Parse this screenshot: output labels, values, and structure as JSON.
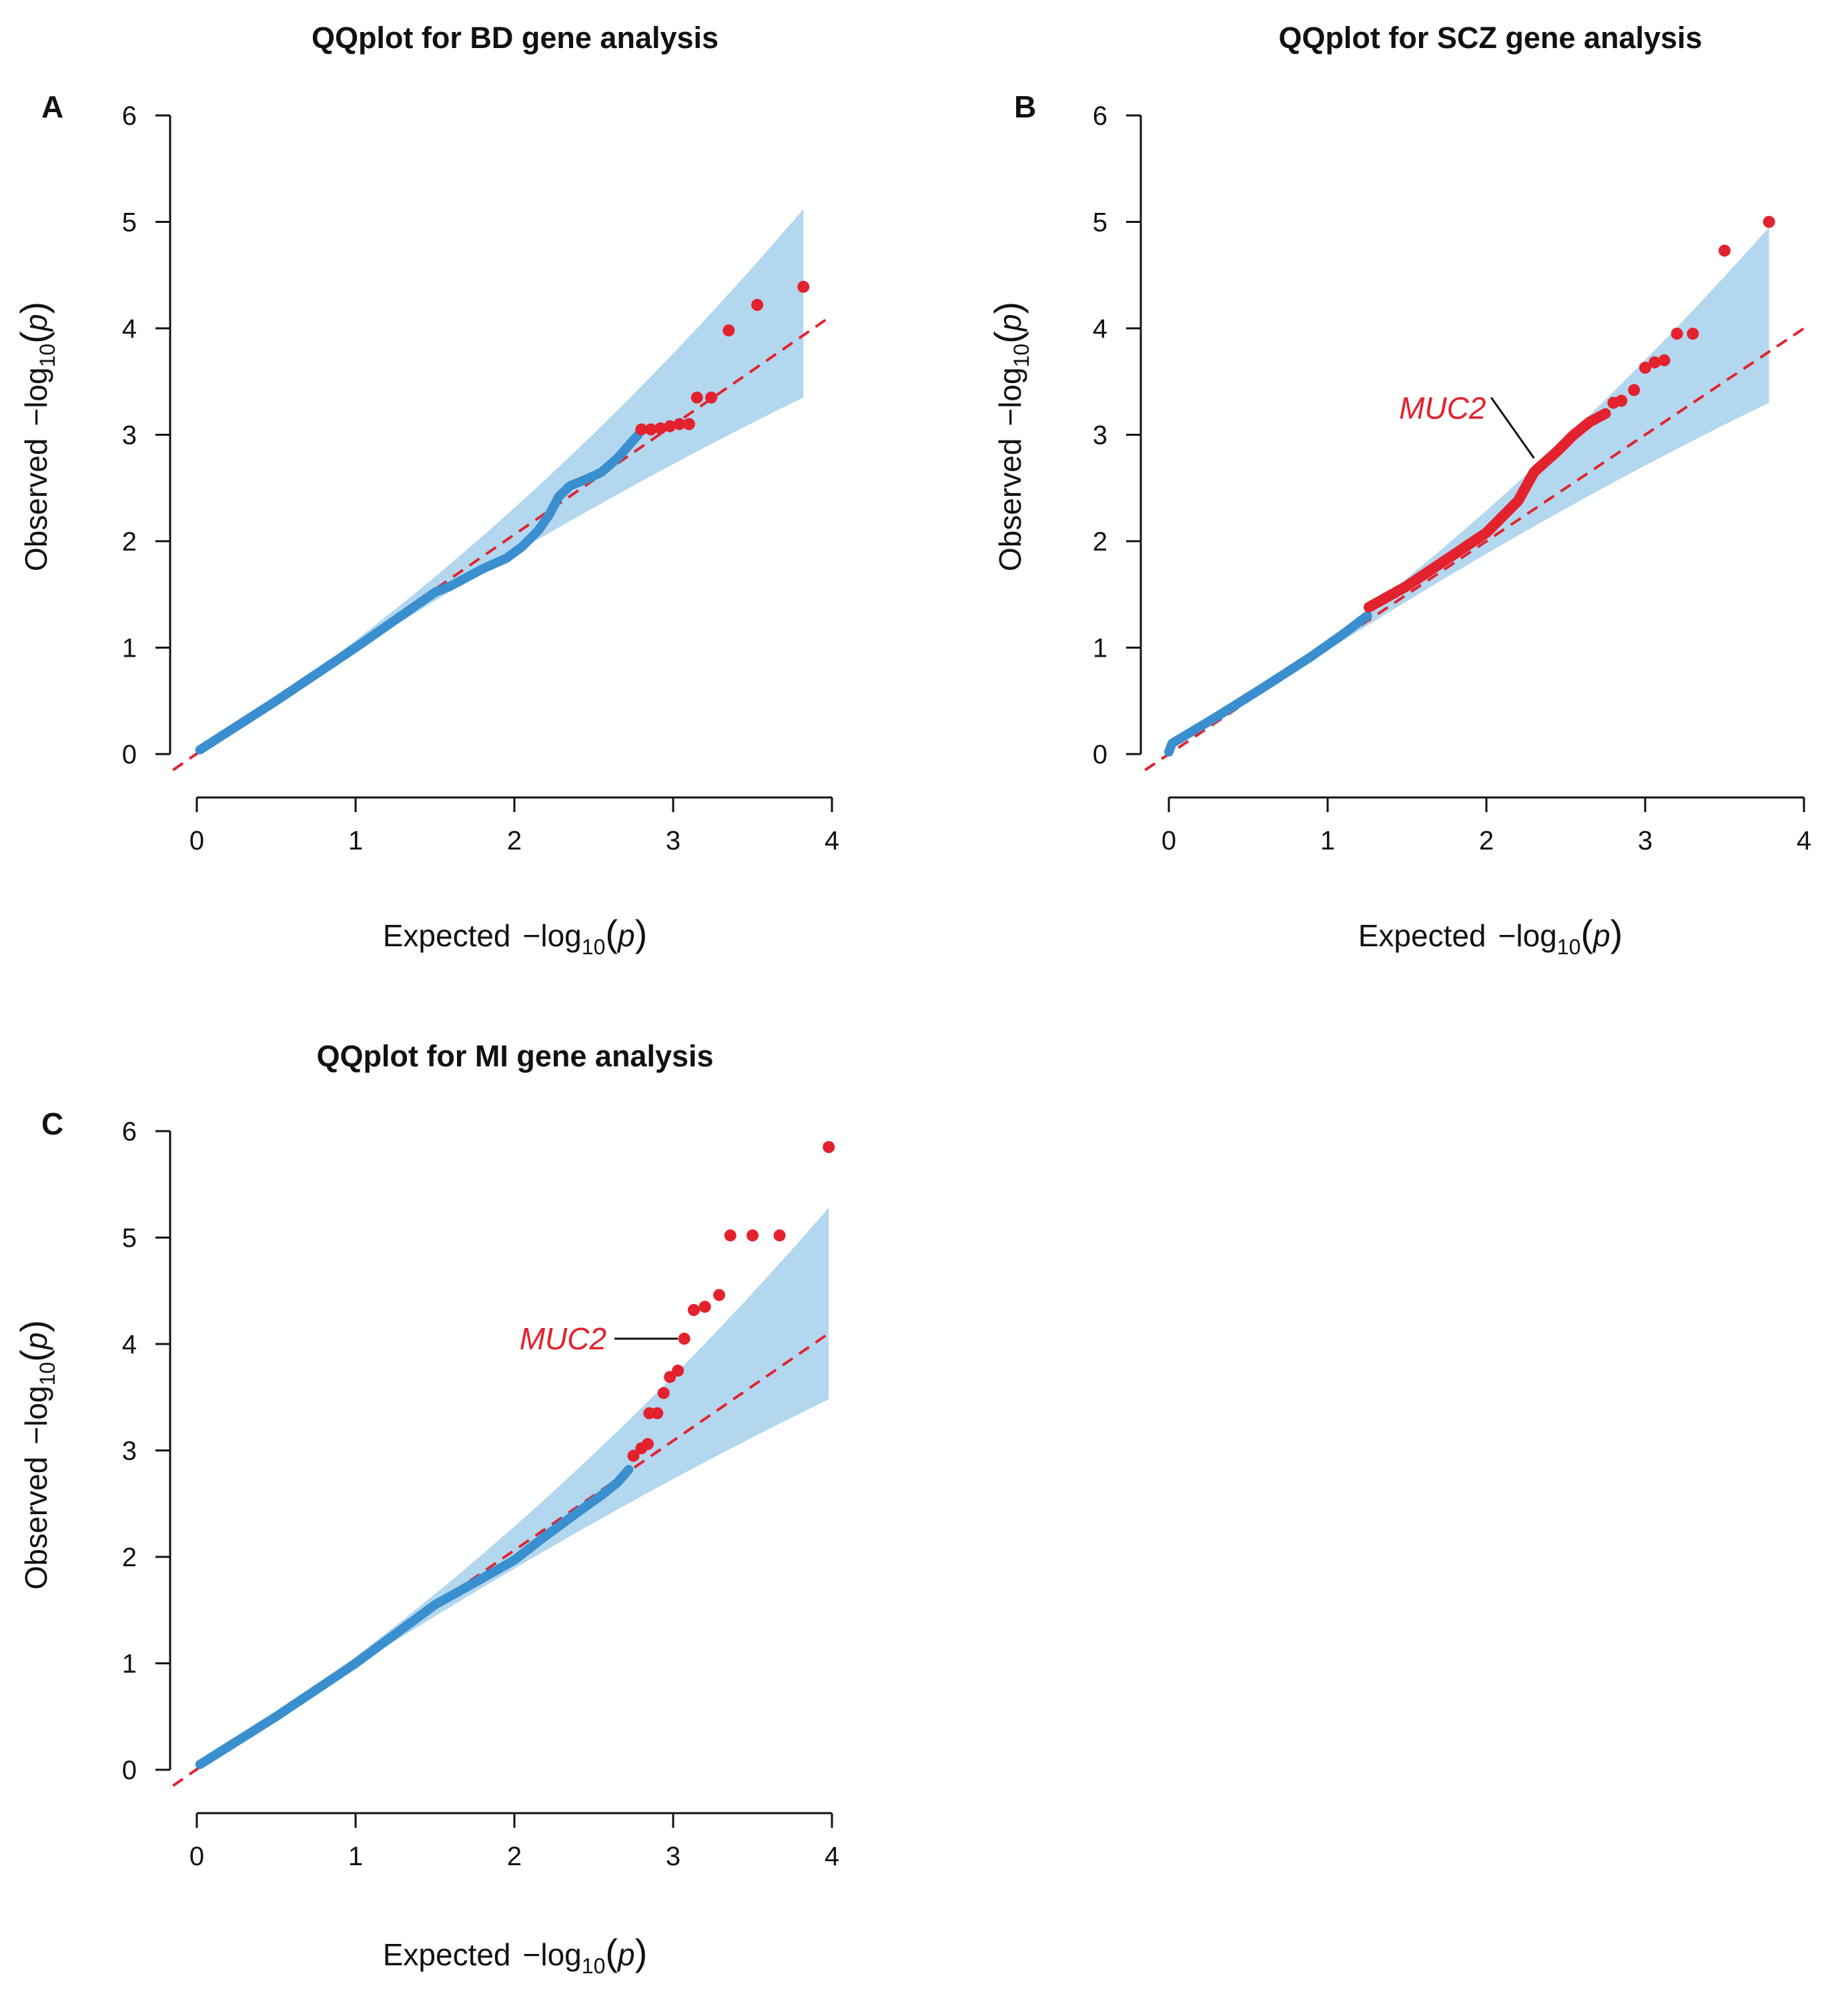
{
  "colors": {
    "band": "#b3d7ee",
    "null_line": "#e3222d",
    "point_normal": "#3a8fcf",
    "point_significant": "#e3222d",
    "axis": "#111111"
  },
  "chart_data": [
    {
      "panel": "A",
      "type": "scatter",
      "title": "QQplot for BD gene analysis",
      "xlabel": {
        "pre": "Expected",
        "minus_log": "−log",
        "base": "10",
        "open": "(",
        "var": "p",
        "close": ")"
      },
      "ylabel": {
        "pre": "Observed",
        "minus_log": "−log",
        "base": "10",
        "open": "(",
        "var": "p",
        "close": ")"
      },
      "xlim": [
        0,
        4
      ],
      "ylim": [
        0,
        6
      ],
      "xticks": [
        "0",
        "1",
        "2",
        "3",
        "4"
      ],
      "yticks": [
        "0",
        "1",
        "2",
        "3",
        "4",
        "5",
        "6"
      ],
      "null_line": {
        "x": [
          -0.15,
          4.0
        ],
        "y": [
          -0.15,
          4.12
        ]
      },
      "band_x_max": 3.82,
      "band_upper_end": 5.12,
      "band_lower_end": 3.35,
      "normal_curve": [
        [
          0.02,
          0.04
        ],
        [
          0.5,
          0.5
        ],
        [
          1.0,
          1.0
        ],
        [
          1.5,
          1.52
        ],
        [
          1.6,
          1.58
        ],
        [
          1.8,
          1.74
        ],
        [
          1.95,
          1.84
        ],
        [
          2.05,
          1.95
        ],
        [
          2.15,
          2.1
        ],
        [
          2.22,
          2.25
        ],
        [
          2.28,
          2.42
        ],
        [
          2.35,
          2.52
        ],
        [
          2.45,
          2.58
        ],
        [
          2.55,
          2.65
        ],
        [
          2.65,
          2.78
        ],
        [
          2.72,
          2.9
        ],
        [
          2.78,
          3.0
        ]
      ],
      "normal_n": 260,
      "significant_points": [
        [
          2.8,
          3.05
        ],
        [
          2.86,
          3.05
        ],
        [
          2.92,
          3.06
        ],
        [
          2.98,
          3.08
        ],
        [
          3.04,
          3.1
        ],
        [
          3.1,
          3.1
        ],
        [
          3.15,
          3.35
        ],
        [
          3.24,
          3.35
        ],
        [
          3.35,
          3.98
        ],
        [
          3.53,
          4.22
        ],
        [
          3.82,
          4.39
        ]
      ],
      "annotation": null
    },
    {
      "panel": "B",
      "type": "scatter",
      "title": "QQplot for SCZ gene analysis",
      "xlabel": {
        "pre": "Expected",
        "minus_log": "−log",
        "base": "10",
        "open": "(",
        "var": "p",
        "close": ")"
      },
      "ylabel": {
        "pre": "Observed",
        "minus_log": "−log",
        "base": "10",
        "open": "(",
        "var": "p",
        "close": ")"
      },
      "xlim": [
        0,
        4
      ],
      "ylim": [
        0,
        6
      ],
      "xticks": [
        "0",
        "1",
        "2",
        "3",
        "4"
      ],
      "yticks": [
        "0",
        "1",
        "2",
        "3",
        "4",
        "5",
        "6"
      ],
      "null_line": {
        "x": [
          -0.15,
          4.0
        ],
        "y": [
          -0.15,
          4.0
        ]
      },
      "band_x_max": 3.78,
      "band_upper_end": 4.95,
      "band_lower_end": 3.3,
      "normal_curve": [
        [
          0.0,
          0.02
        ],
        [
          0.02,
          0.1
        ],
        [
          0.3,
          0.35
        ],
        [
          0.6,
          0.63
        ],
        [
          0.9,
          0.92
        ],
        [
          1.1,
          1.13
        ],
        [
          1.25,
          1.3
        ]
      ],
      "normal_n": 130,
      "significant_curve": [
        [
          1.26,
          1.38
        ],
        [
          1.5,
          1.58
        ],
        [
          1.8,
          1.88
        ],
        [
          2.0,
          2.08
        ],
        [
          2.2,
          2.38
        ],
        [
          2.3,
          2.65
        ],
        [
          2.45,
          2.85
        ],
        [
          2.55,
          3.0
        ],
        [
          2.65,
          3.12
        ],
        [
          2.75,
          3.2
        ]
      ],
      "significant_n": 150,
      "significant_points": [
        [
          2.8,
          3.3
        ],
        [
          2.85,
          3.32
        ],
        [
          2.93,
          3.42
        ],
        [
          3.0,
          3.63
        ],
        [
          3.06,
          3.68
        ],
        [
          3.12,
          3.7
        ],
        [
          3.2,
          3.95
        ],
        [
          3.3,
          3.95
        ],
        [
          3.5,
          4.73
        ],
        [
          3.78,
          5.0
        ]
      ],
      "annotation": {
        "label": "MUC2",
        "text_at": [
          1.45,
          3.25
        ],
        "line_from": [
          2.03,
          3.35
        ],
        "line_to": [
          2.3,
          2.78
        ]
      }
    },
    {
      "panel": "C",
      "type": "scatter",
      "title": "QQplot for MI gene analysis",
      "xlabel": {
        "pre": "Expected",
        "minus_log": "−log",
        "base": "10",
        "open": "(",
        "var": "p",
        "close": ")"
      },
      "ylabel": {
        "pre": "Observed",
        "minus_log": "−log",
        "base": "10",
        "open": "(",
        "var": "p",
        "close": ")"
      },
      "xlim": [
        0,
        4
      ],
      "ylim": [
        0,
        6
      ],
      "xticks": [
        "0",
        "1",
        "2",
        "3",
        "4"
      ],
      "yticks": [
        "0",
        "1",
        "2",
        "3",
        "4",
        "5",
        "6"
      ],
      "null_line": {
        "x": [
          -0.15,
          4.0
        ],
        "y": [
          -0.15,
          4.12
        ]
      },
      "band_x_max": 3.98,
      "band_upper_end": 5.28,
      "band_lower_end": 3.48,
      "normal_curve": [
        [
          0.02,
          0.05
        ],
        [
          0.5,
          0.5
        ],
        [
          1.0,
          1.0
        ],
        [
          1.5,
          1.55
        ],
        [
          1.8,
          1.8
        ],
        [
          2.0,
          1.97
        ],
        [
          2.2,
          2.2
        ],
        [
          2.4,
          2.42
        ],
        [
          2.55,
          2.58
        ],
        [
          2.65,
          2.7
        ],
        [
          2.72,
          2.82
        ]
      ],
      "normal_n": 260,
      "significant_points": [
        [
          2.75,
          2.95
        ],
        [
          2.8,
          3.02
        ],
        [
          2.84,
          3.06
        ],
        [
          2.85,
          3.35
        ],
        [
          2.9,
          3.35
        ],
        [
          2.94,
          3.54
        ],
        [
          2.98,
          3.69
        ],
        [
          3.03,
          3.75
        ],
        [
          3.07,
          4.05
        ],
        [
          3.13,
          4.32
        ],
        [
          3.2,
          4.35
        ],
        [
          3.29,
          4.46
        ],
        [
          3.36,
          5.02
        ],
        [
          3.5,
          5.02
        ],
        [
          3.67,
          5.02
        ],
        [
          3.98,
          5.85
        ]
      ],
      "annotation": {
        "label": "MUC2",
        "text_at": [
          2.58,
          4.05
        ],
        "line_from": [
          2.63,
          4.05
        ],
        "line_to": [
          3.03,
          4.05
        ]
      }
    }
  ]
}
